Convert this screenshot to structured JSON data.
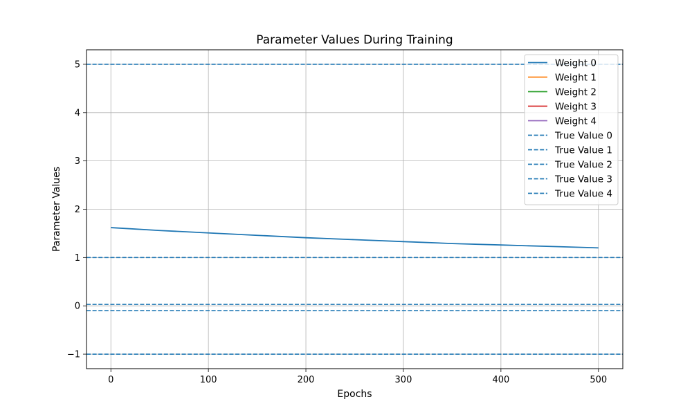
{
  "chart_data": {
    "type": "line",
    "title": "Parameter Values During Training",
    "xlabel": "Epochs",
    "ylabel": "Parameter Values",
    "xlim": [
      -25,
      525
    ],
    "ylim": [
      -1.3,
      5.3
    ],
    "xticks": [
      0,
      100,
      200,
      300,
      400,
      500
    ],
    "yticks": [
      -1,
      0,
      1,
      2,
      3,
      4,
      5
    ],
    "ytick_labels": [
      "−1",
      "0",
      "1",
      "2",
      "3",
      "4",
      "5"
    ],
    "grid": true,
    "legend_position": "top-right",
    "series": [
      {
        "name": "Weight 0",
        "color": "#1f77b4",
        "style": "solid",
        "x": [
          0,
          50,
          100,
          150,
          200,
          250,
          300,
          350,
          400,
          450,
          500
        ],
        "y": [
          1.62,
          1.56,
          1.51,
          1.46,
          1.41,
          1.37,
          1.33,
          1.29,
          1.26,
          1.23,
          1.2
        ]
      },
      {
        "name": "Weight 1",
        "color": "#ff7f0e",
        "style": "solid",
        "x": [],
        "y": []
      },
      {
        "name": "Weight 2",
        "color": "#2ca02c",
        "style": "solid",
        "x": [],
        "y": []
      },
      {
        "name": "Weight 3",
        "color": "#d62728",
        "style": "solid",
        "x": [],
        "y": []
      },
      {
        "name": "Weight 4",
        "color": "#9467bd",
        "style": "solid",
        "x": [],
        "y": []
      }
    ],
    "reference_lines": [
      {
        "name": "True Value 0",
        "y": 5,
        "color": "#1f77b4",
        "style": "dashed"
      },
      {
        "name": "True Value 1",
        "y": 1,
        "color": "#1f77b4",
        "style": "dashed"
      },
      {
        "name": "True Value 2",
        "y": -0.1,
        "color": "#1f77b4",
        "style": "dashed"
      },
      {
        "name": "True Value 3",
        "y": 0.03,
        "color": "#1f77b4",
        "style": "dashed"
      },
      {
        "name": "True Value 4",
        "y": -1,
        "color": "#1f77b4",
        "style": "dashed"
      }
    ]
  }
}
